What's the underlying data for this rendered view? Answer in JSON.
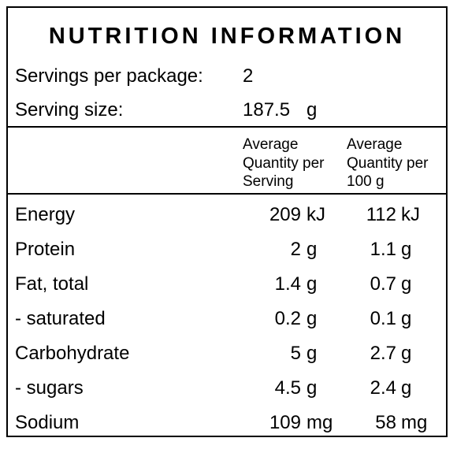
{
  "title": "NUTRITION INFORMATION",
  "servings": {
    "label": "Servings per package:",
    "value": "2"
  },
  "serving_size": {
    "label": "Serving size:",
    "value": "187.5",
    "unit": "g"
  },
  "columns": {
    "per_serving": [
      "Average",
      "Quantity per",
      "Serving"
    ],
    "per_100g": [
      "Average",
      "Quantity per",
      "100 g"
    ]
  },
  "rows": [
    {
      "name": "Energy",
      "per_serving": "209",
      "per_serving_unit": "kJ",
      "per_100g": "112",
      "per_100g_unit": "kJ"
    },
    {
      "name": "Protein",
      "per_serving": "2",
      "per_serving_unit": "g",
      "per_100g": "1.1",
      "per_100g_unit": "g"
    },
    {
      "name": "Fat, total",
      "per_serving": "1.4",
      "per_serving_unit": "g",
      "per_100g": "0.7",
      "per_100g_unit": "g"
    },
    {
      "name": "- saturated",
      "per_serving": "0.2",
      "per_serving_unit": "g",
      "per_100g": "0.1",
      "per_100g_unit": "g"
    },
    {
      "name": "Carbohydrate",
      "per_serving": "5",
      "per_serving_unit": "g",
      "per_100g": "2.7",
      "per_100g_unit": "g"
    },
    {
      "name": "- sugars",
      "per_serving": "4.5",
      "per_serving_unit": "g",
      "per_100g": "2.4",
      "per_100g_unit": "g"
    },
    {
      "name": "Sodium",
      "per_serving": "109",
      "per_serving_unit": "mg",
      "per_100g": "58",
      "per_100g_unit": "mg"
    }
  ]
}
